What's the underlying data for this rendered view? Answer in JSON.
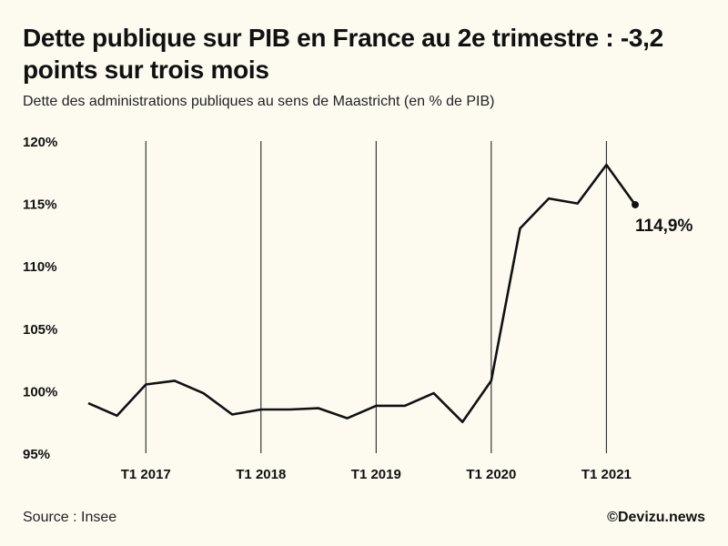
{
  "header": {
    "title": "Dette publique sur PIB en France au 2e trimestre : -3,2 points sur trois mois",
    "subtitle": "Dette des administrations publiques au sens de Maastricht (en % de PIB)"
  },
  "footer": {
    "source": "Source : Insee",
    "credit": "©Devizu.news"
  },
  "chart_data": {
    "type": "line",
    "title": "Dette publique sur PIB en France au 2e trimestre : -3,2 points sur trois mois",
    "subtitle": "Dette des administrations publiques au sens de Maastricht (en % de PIB)",
    "x": [
      "T3 2016",
      "T4 2016",
      "T1 2017",
      "T2 2017",
      "T3 2017",
      "T4 2017",
      "T1 2018",
      "T2 2018",
      "T3 2018",
      "T4 2018",
      "T1 2019",
      "T2 2019",
      "T3 2019",
      "T4 2019",
      "T1 2020",
      "T2 2020",
      "T3 2020",
      "T4 2020",
      "T1 2021",
      "T2 2021"
    ],
    "series": [
      {
        "values": [
          99.0,
          98.0,
          100.5,
          100.8,
          99.8,
          98.1,
          98.5,
          98.5,
          98.6,
          97.8,
          98.8,
          98.8,
          99.8,
          97.5,
          100.8,
          113.0,
          115.4,
          115.0,
          118.1,
          114.9
        ]
      }
    ],
    "ylim": [
      95,
      120
    ],
    "yticks": [
      95,
      100,
      105,
      110,
      115,
      120
    ],
    "ytick_labels": [
      "95%",
      "100%",
      "105%",
      "110%",
      "115%",
      "120%"
    ],
    "xticks": [
      "T1 2017",
      "T1 2018",
      "T1 2019",
      "T1 2020",
      "T1 2021"
    ],
    "annotation": {
      "point": "T2 2021",
      "text": "114,9%"
    },
    "grid": "vertical lines at each T1",
    "colors": {
      "line": "#111111",
      "background": "#fdfbf0"
    }
  }
}
